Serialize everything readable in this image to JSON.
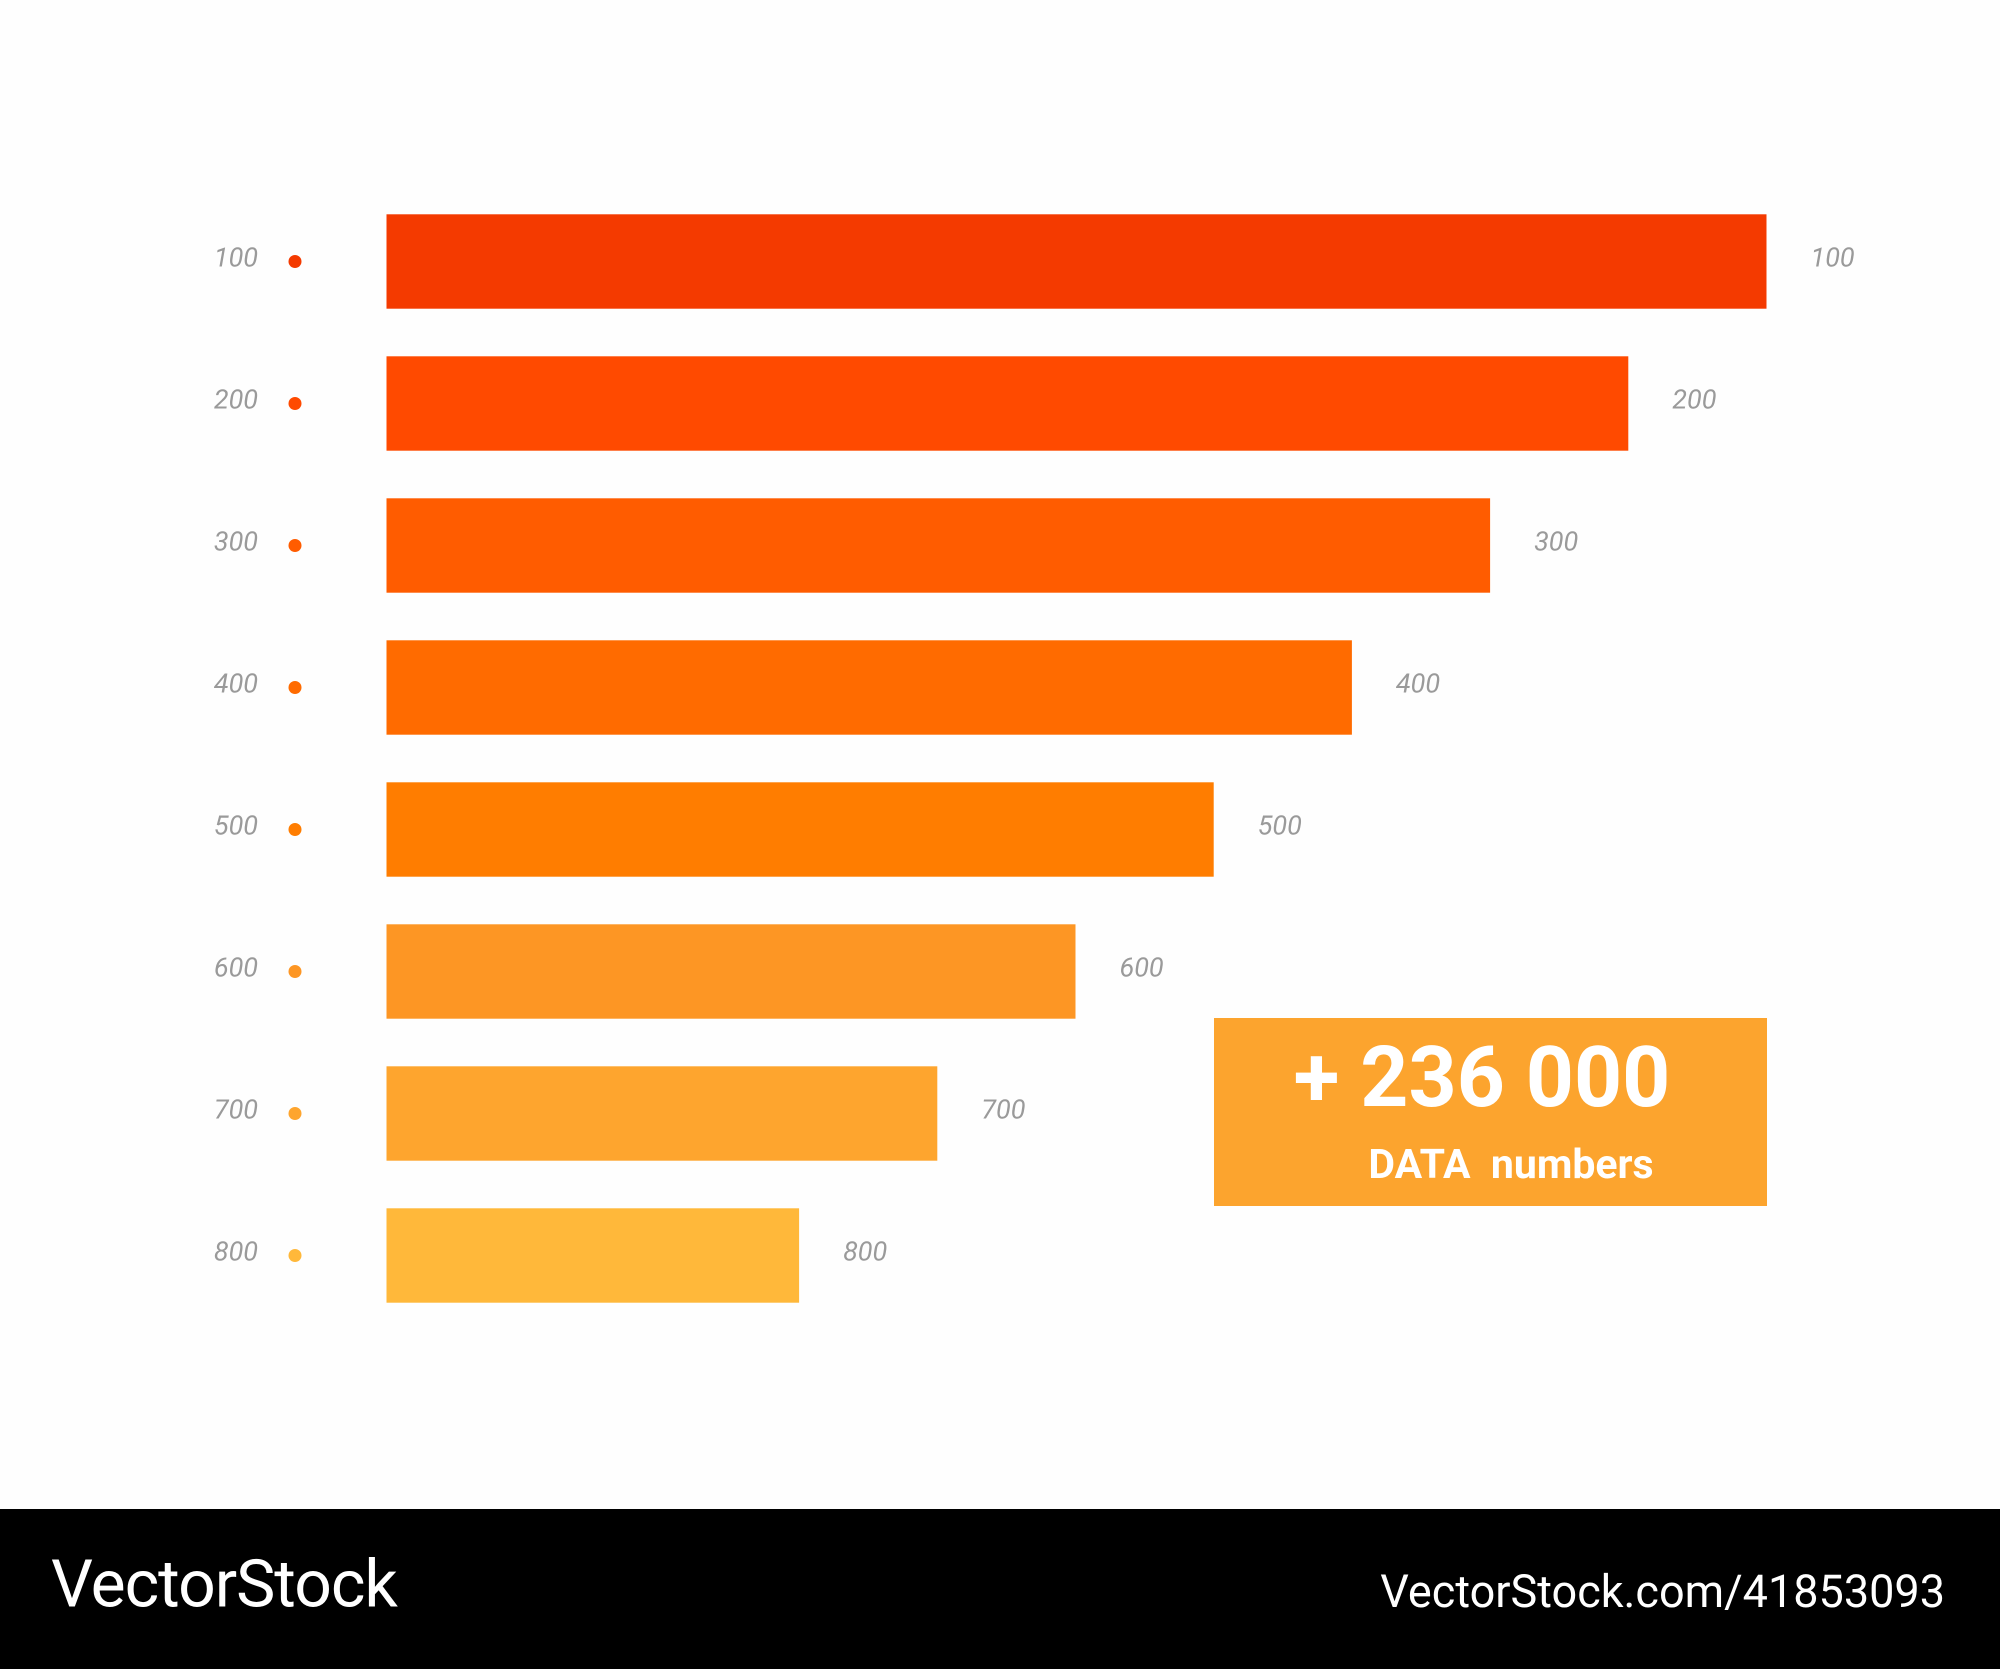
{
  "rows": [
    {
      "label": "100",
      "value_label": "100"
    },
    {
      "label": "200",
      "value_label": "200"
    },
    {
      "label": "300",
      "value_label": "300"
    },
    {
      "label": "400",
      "value_label": "400"
    },
    {
      "label": "500",
      "value_label": "500"
    },
    {
      "label": "600",
      "value_label": "600"
    },
    {
      "label": "700",
      "value_label": "700"
    },
    {
      "label": "800",
      "value_label": "800"
    }
  ],
  "callout": {
    "number": "+ 236 000",
    "caption": "DATA  numbers"
  },
  "footer": {
    "brand": "VectorStock",
    "url": "VectorStock.com/41853093"
  }
}
